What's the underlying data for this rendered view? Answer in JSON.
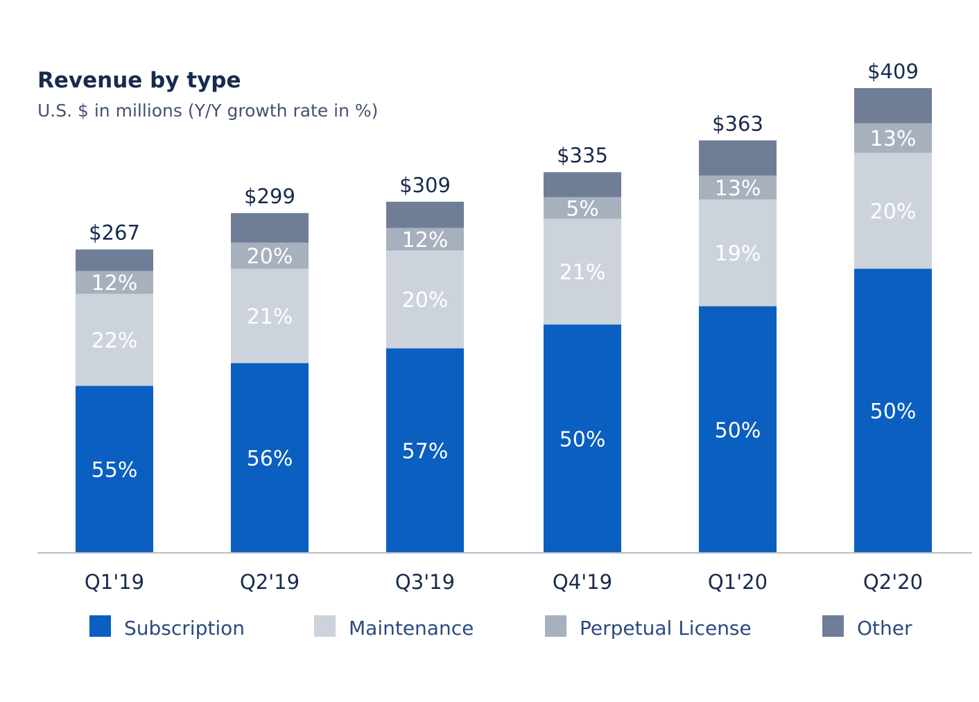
{
  "chart_data": {
    "type": "bar",
    "stacked": true,
    "title": "Revenue by type",
    "subtitle": "U.S. $ in millions (Y/Y growth rate in %)",
    "categories": [
      "Q1'19",
      "Q2'19",
      "Q3'19",
      "Q4'19",
      "Q1'20",
      "Q2'20"
    ],
    "totals": [
      267,
      299,
      309,
      335,
      363,
      409
    ],
    "total_labels": [
      "$267",
      "$299",
      "$309",
      "$335",
      "$363",
      "$409"
    ],
    "series": [
      {
        "name": "Subscription",
        "color": "#0a5fc0",
        "values": [
          147,
          167,
          180,
          201,
          217,
          250
        ],
        "labels": [
          "55%",
          "56%",
          "57%",
          "50%",
          "50%",
          "50%"
        ]
      },
      {
        "name": "Maintenance",
        "color": "#cdd3db",
        "values": [
          81,
          83,
          86,
          93,
          94,
          102
        ],
        "labels": [
          "22%",
          "21%",
          "20%",
          "21%",
          "19%",
          "20%"
        ]
      },
      {
        "name": "Perpetual License",
        "color": "#a7b0bd",
        "values": [
          20,
          23,
          20,
          19,
          21,
          26
        ],
        "labels": [
          "12%",
          "20%",
          "12%",
          "5%",
          "13%",
          "13%"
        ]
      },
      {
        "name": "Other",
        "color": "#6f7e96",
        "values": [
          19,
          26,
          23,
          22,
          31,
          31
        ],
        "labels": [
          "",
          "",
          "",
          "",
          "",
          ""
        ]
      }
    ],
    "ylim": [
      0,
      409
    ],
    "grid": false,
    "legend": "bottom"
  }
}
